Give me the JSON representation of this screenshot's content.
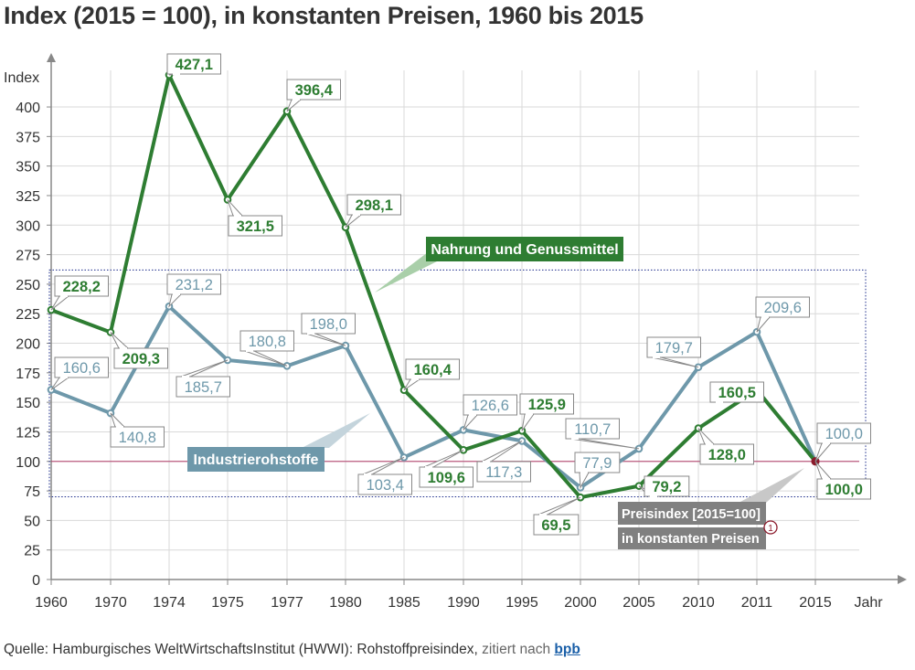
{
  "title": "Index (2015 = 100), in konstanten Preisen, 1960 bis 2015",
  "source": {
    "prefix": "Quelle: Hamburgisches WeltWirtschaftsInstitut (HWWI): Rohstoffpreisindex,",
    "cited": "zitiert nach",
    "link": "bpb"
  },
  "colors": {
    "food": "#2e7d32",
    "industrial": "#6e98aa",
    "reference": "#b03060",
    "endpoint": "#8b1a2b",
    "axis": "#888888",
    "grid": "#d9d9d9",
    "legend_food_bg": "#2e7d32",
    "legend_ind_bg": "#6e98aa",
    "preis_bg": "#808080",
    "box_border": "#1a2a8a"
  },
  "chart_data": {
    "type": "line",
    "ylabel": "Index",
    "xlabel": "Jahr",
    "ylim": [
      0,
      450
    ],
    "yticks": [
      0,
      25,
      50,
      75,
      100,
      125,
      150,
      175,
      200,
      225,
      250,
      275,
      300,
      325,
      350,
      375,
      400
    ],
    "ytick_labels": [
      "0",
      "25",
      "50",
      "75",
      "100",
      "125",
      "150",
      "175",
      "200",
      "225",
      "250",
      "275",
      "300",
      "325",
      "350",
      "375",
      "400"
    ],
    "categories": [
      "1960",
      "1970",
      "1974",
      "1975",
      "1977",
      "1980",
      "1985",
      "1990",
      "1995",
      "2000",
      "2005",
      "2010",
      "2011",
      "2015"
    ],
    "grid": true,
    "reference_line": 100,
    "zoom_box_range": [
      70,
      262
    ],
    "series": [
      {
        "name": "Nahrung und Genussmittel",
        "values": [
          228.2,
          209.3,
          427.1,
          321.5,
          396.4,
          298.1,
          160.4,
          109.6,
          125.9,
          69.5,
          79.2,
          128.0,
          160.5,
          100.0
        ],
        "labels": [
          "228,2",
          "209,3",
          "427,1",
          "321,5",
          "396,4",
          "298,1",
          "160,4",
          "109,6",
          "125,9",
          "69,5",
          "79,2",
          "128,0",
          "160,5",
          "100,0"
        ]
      },
      {
        "name": "Industrierohstoffe",
        "values": [
          160.6,
          140.8,
          231.2,
          185.7,
          180.8,
          198.0,
          103.4,
          126.6,
          117.3,
          77.9,
          110.7,
          179.7,
          209.6,
          100.0
        ],
        "labels": [
          "160,6",
          "140,8",
          "231,2",
          "185,7",
          "180,8",
          "198,0",
          "103,4",
          "126,6",
          "117,3",
          "77,9",
          "110,7",
          "179,7",
          "209,6",
          "100,0"
        ]
      }
    ],
    "annotations": {
      "price_index_line1": "Preisindex [2015=100]",
      "price_index_line2": "in konstanten Preisen",
      "footnote_marker": "1"
    }
  }
}
